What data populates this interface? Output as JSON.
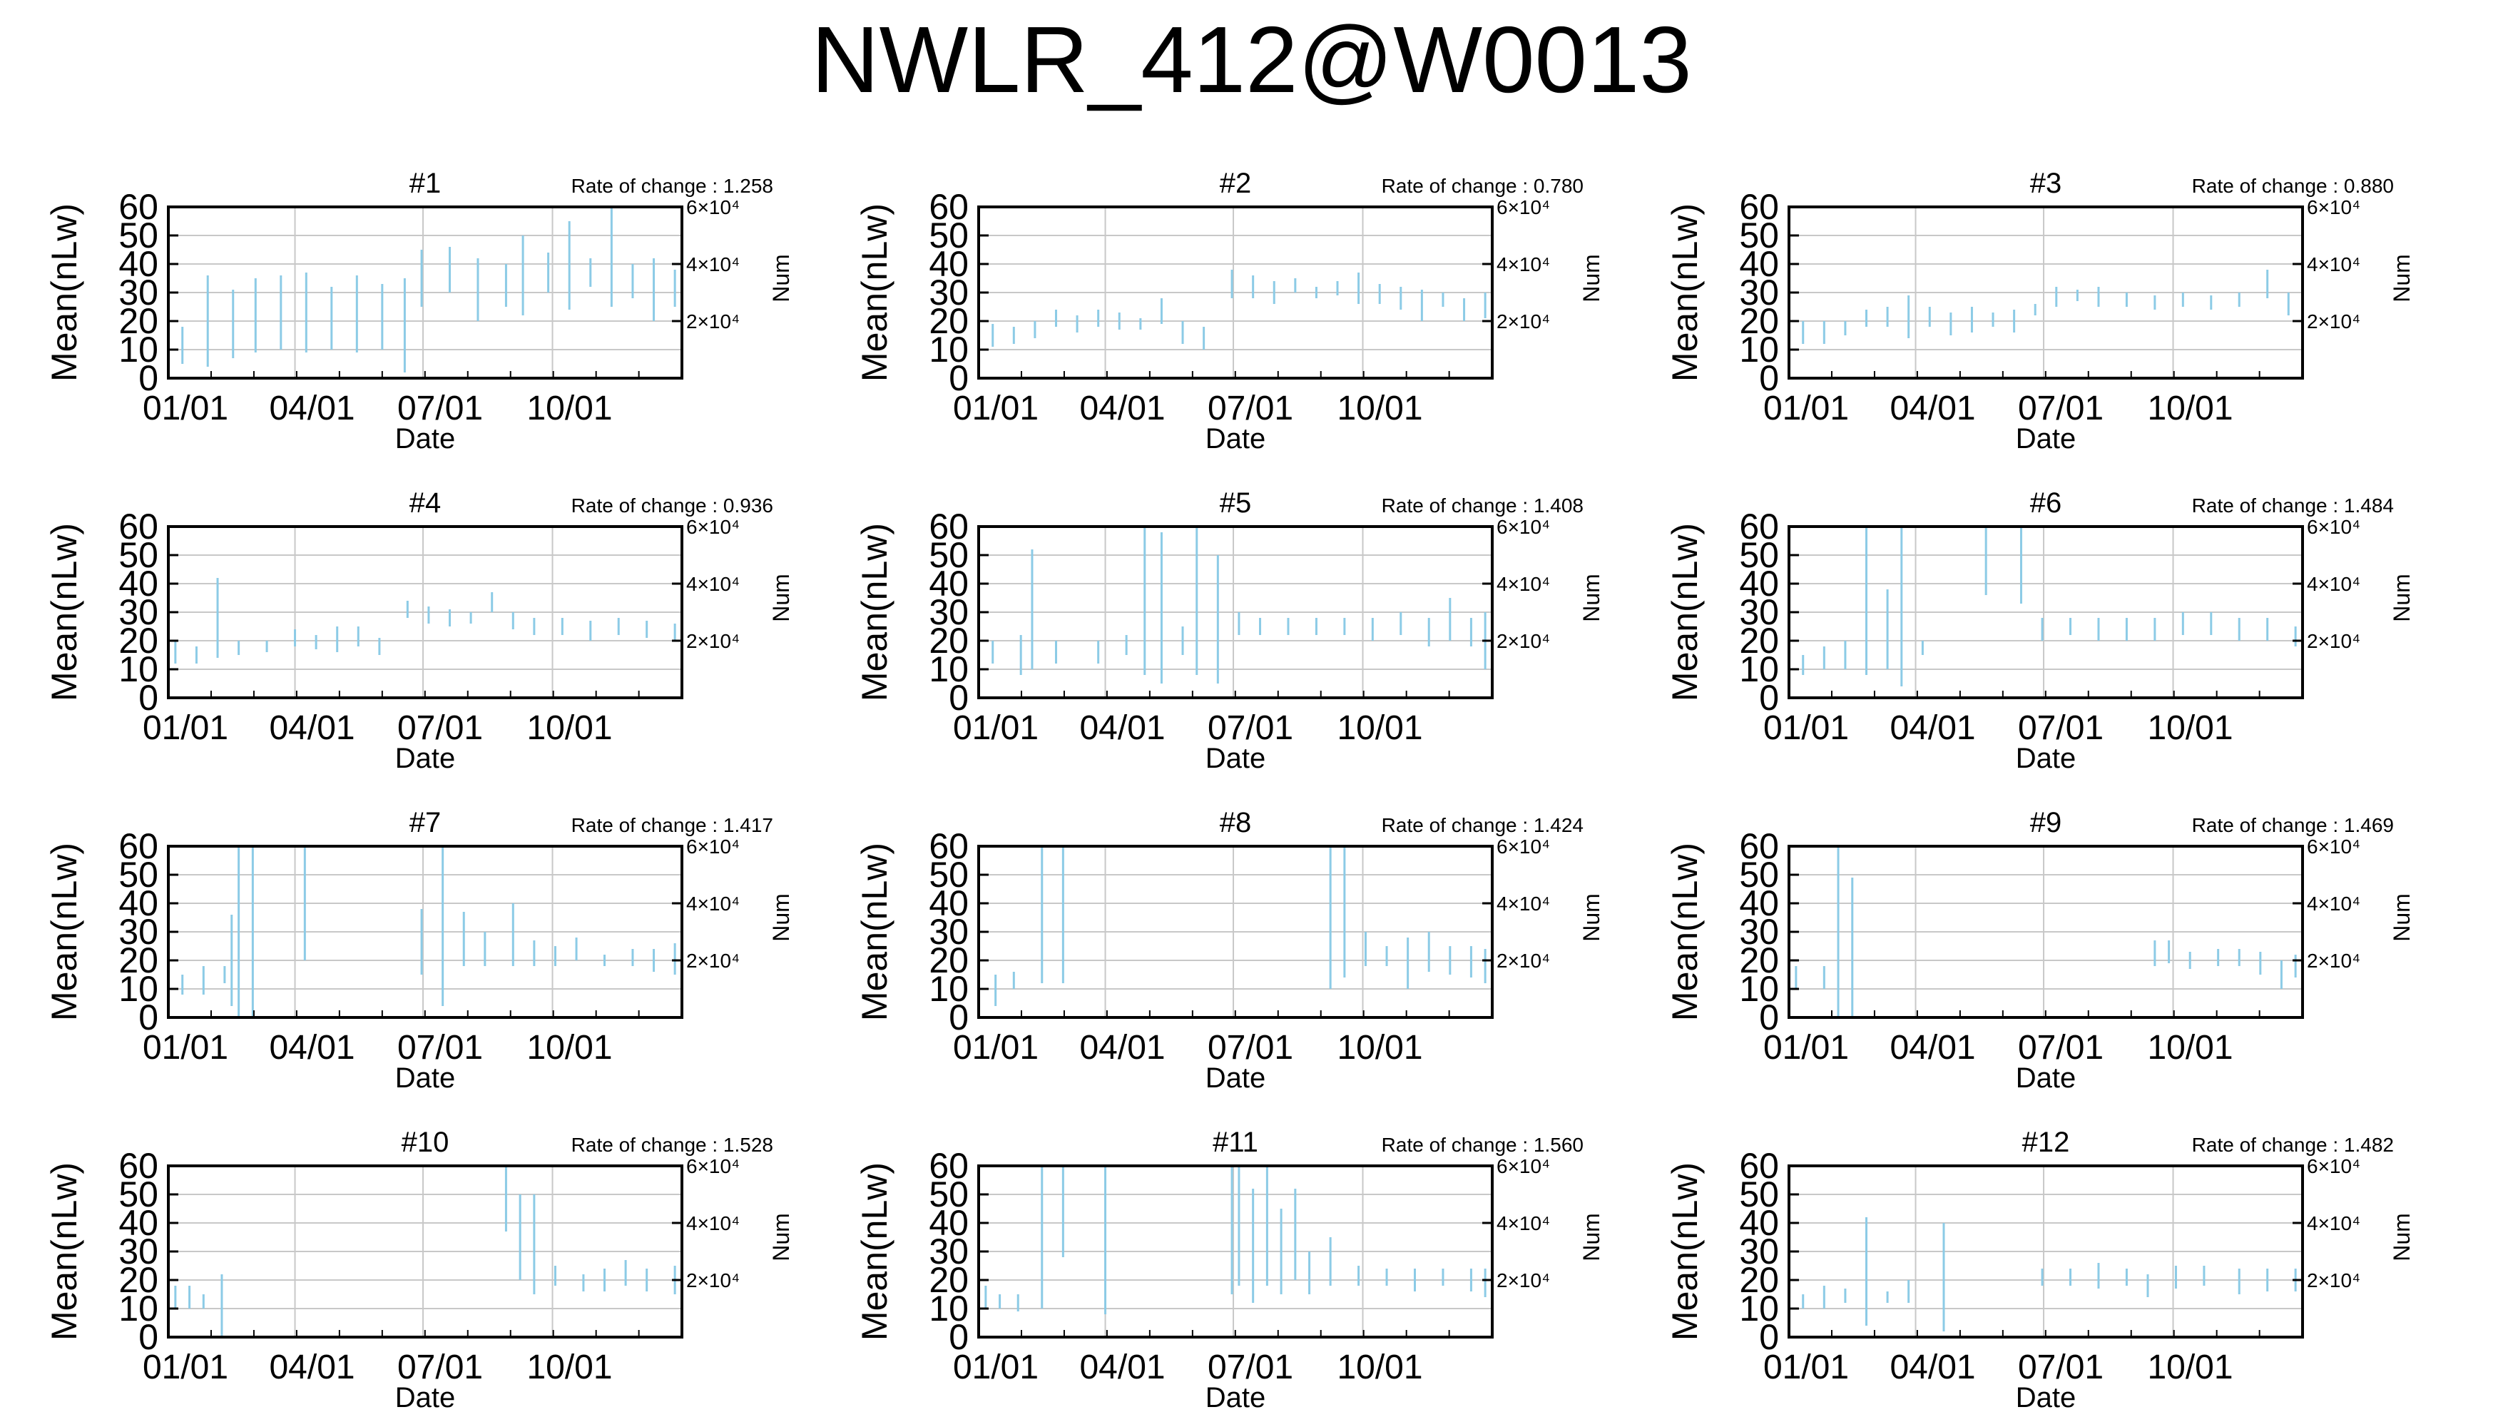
{
  "title": "NWLR_412@W0013",
  "chart_data": {
    "type": "range-bar",
    "ylabel": "Mean(nLw)",
    "xlabel": "Date",
    "y2label": "Num",
    "ylim": [
      0,
      60
    ],
    "yticks": [
      "0",
      "10",
      "20",
      "30",
      "40",
      "50",
      "60"
    ],
    "y2ticks": [
      "2×10⁴",
      "4×10⁴",
      "6×10⁴"
    ],
    "xlim": [
      0,
      365
    ],
    "xticks": [
      {
        "day": 0,
        "label": "01/01"
      },
      {
        "day": 90,
        "label": "04/01"
      },
      {
        "day": 181,
        "label": "07/01"
      },
      {
        "day": 273,
        "label": "10/01"
      }
    ],
    "grid": true,
    "bar_color": "#8ccbe6",
    "panels": [
      {
        "title": "#1",
        "rate_label": "Rate of change : 1.258",
        "bars": [
          [
            10,
            5,
            18
          ],
          [
            28,
            4,
            36
          ],
          [
            46,
            7,
            31
          ],
          [
            62,
            9,
            35
          ],
          [
            80,
            10,
            36
          ],
          [
            98,
            9,
            37
          ],
          [
            116,
            10,
            32
          ],
          [
            134,
            9,
            36
          ],
          [
            152,
            10,
            33
          ],
          [
            168,
            2,
            35
          ],
          [
            180,
            25,
            45
          ],
          [
            200,
            30,
            46
          ],
          [
            220,
            20,
            42
          ],
          [
            240,
            25,
            40
          ],
          [
            252,
            22,
            50
          ],
          [
            270,
            30,
            44
          ],
          [
            285,
            24,
            55
          ],
          [
            300,
            32,
            42
          ],
          [
            315,
            25,
            60
          ],
          [
            330,
            28,
            40
          ],
          [
            345,
            20,
            42
          ],
          [
            360,
            25,
            38
          ]
        ]
      },
      {
        "title": "#2",
        "rate_label": "Rate of change : 0.780",
        "bars": [
          [
            10,
            11,
            19
          ],
          [
            25,
            12,
            18
          ],
          [
            40,
            14,
            20
          ],
          [
            55,
            18,
            24
          ],
          [
            70,
            16,
            22
          ],
          [
            85,
            18,
            24
          ],
          [
            100,
            17,
            23
          ],
          [
            115,
            17,
            21
          ],
          [
            130,
            19,
            28
          ],
          [
            145,
            12,
            20
          ],
          [
            160,
            10,
            18
          ],
          [
            180,
            28,
            38
          ],
          [
            195,
            28,
            36
          ],
          [
            210,
            26,
            34
          ],
          [
            225,
            30,
            35
          ],
          [
            240,
            28,
            32
          ],
          [
            255,
            29,
            34
          ],
          [
            270,
            26,
            37
          ],
          [
            285,
            26,
            33
          ],
          [
            300,
            24,
            32
          ],
          [
            315,
            20,
            31
          ],
          [
            330,
            25,
            30
          ],
          [
            345,
            20,
            28
          ],
          [
            360,
            21,
            30
          ]
        ]
      },
      {
        "title": "#3",
        "rate_label": "Rate of change : 0.880",
        "bars": [
          [
            10,
            12,
            20
          ],
          [
            25,
            12,
            20
          ],
          [
            40,
            15,
            20
          ],
          [
            55,
            18,
            24
          ],
          [
            70,
            18,
            25
          ],
          [
            85,
            14,
            29
          ],
          [
            100,
            18,
            25
          ],
          [
            115,
            15,
            23
          ],
          [
            130,
            16,
            25
          ],
          [
            145,
            18,
            23
          ],
          [
            160,
            16,
            24
          ],
          [
            175,
            22,
            26
          ],
          [
            190,
            25,
            32
          ],
          [
            205,
            27,
            31
          ],
          [
            220,
            25,
            32
          ],
          [
            240,
            25,
            30
          ],
          [
            260,
            24,
            29
          ],
          [
            280,
            25,
            30
          ],
          [
            300,
            24,
            29
          ],
          [
            320,
            25,
            30
          ],
          [
            340,
            28,
            38
          ],
          [
            355,
            22,
            30
          ]
        ]
      },
      {
        "title": "#4",
        "rate_label": "Rate of change : 0.936",
        "bars": [
          [
            5,
            12,
            20
          ],
          [
            20,
            12,
            18
          ],
          [
            35,
            14,
            42
          ],
          [
            50,
            15,
            20
          ],
          [
            70,
            16,
            20
          ],
          [
            90,
            18,
            24
          ],
          [
            105,
            17,
            22
          ],
          [
            120,
            16,
            25
          ],
          [
            135,
            18,
            25
          ],
          [
            150,
            15,
            21
          ],
          [
            170,
            28,
            34
          ],
          [
            185,
            26,
            32
          ],
          [
            200,
            25,
            31
          ],
          [
            215,
            26,
            30
          ],
          [
            230,
            30,
            37
          ],
          [
            245,
            24,
            30
          ],
          [
            260,
            22,
            28
          ],
          [
            280,
            22,
            28
          ],
          [
            300,
            20,
            27
          ],
          [
            320,
            22,
            28
          ],
          [
            340,
            21,
            27
          ],
          [
            360,
            20,
            26
          ]
        ]
      },
      {
        "title": "#5",
        "rate_label": "Rate of change : 1.408",
        "bars": [
          [
            10,
            12,
            20
          ],
          [
            30,
            8,
            22
          ],
          [
            38,
            10,
            52
          ],
          [
            55,
            12,
            20
          ],
          [
            85,
            12,
            20
          ],
          [
            105,
            15,
            22
          ],
          [
            118,
            8,
            60
          ],
          [
            130,
            5,
            58
          ],
          [
            145,
            15,
            25
          ],
          [
            155,
            8,
            60
          ],
          [
            170,
            5,
            50
          ],
          [
            185,
            22,
            30
          ],
          [
            200,
            22,
            28
          ],
          [
            220,
            22,
            28
          ],
          [
            240,
            22,
            28
          ],
          [
            260,
            22,
            28
          ],
          [
            280,
            20,
            28
          ],
          [
            300,
            22,
            30
          ],
          [
            320,
            18,
            28
          ],
          [
            335,
            20,
            35
          ],
          [
            350,
            18,
            28
          ],
          [
            360,
            10,
            30
          ]
        ]
      },
      {
        "title": "#6",
        "rate_label": "Rate of change : 1.484",
        "bars": [
          [
            10,
            8,
            15
          ],
          [
            25,
            10,
            18
          ],
          [
            40,
            10,
            20
          ],
          [
            55,
            8,
            60
          ],
          [
            70,
            10,
            38
          ],
          [
            80,
            4,
            60
          ],
          [
            95,
            15,
            20
          ],
          [
            140,
            36,
            60
          ],
          [
            165,
            33,
            60
          ],
          [
            180,
            20,
            28
          ],
          [
            200,
            22,
            28
          ],
          [
            220,
            20,
            28
          ],
          [
            240,
            20,
            28
          ],
          [
            260,
            20,
            28
          ],
          [
            280,
            22,
            30
          ],
          [
            300,
            22,
            30
          ],
          [
            320,
            20,
            28
          ],
          [
            340,
            20,
            28
          ],
          [
            360,
            18,
            25
          ]
        ]
      },
      {
        "title": "#7",
        "rate_label": "Rate of change : 1.417",
        "bars": [
          [
            10,
            8,
            15
          ],
          [
            25,
            8,
            18
          ],
          [
            40,
            12,
            18
          ],
          [
            45,
            4,
            36
          ],
          [
            50,
            0,
            60
          ],
          [
            60,
            0,
            60
          ],
          [
            97,
            20,
            60
          ],
          [
            180,
            15,
            38
          ],
          [
            195,
            4,
            60
          ],
          [
            210,
            18,
            37
          ],
          [
            225,
            18,
            30
          ],
          [
            245,
            18,
            40
          ],
          [
            260,
            18,
            27
          ],
          [
            275,
            18,
            25
          ],
          [
            290,
            20,
            28
          ],
          [
            310,
            18,
            22
          ],
          [
            330,
            18,
            24
          ],
          [
            345,
            16,
            24
          ],
          [
            360,
            15,
            26
          ]
        ]
      },
      {
        "title": "#8",
        "rate_label": "Rate of change : 1.424",
        "bars": [
          [
            12,
            4,
            15
          ],
          [
            25,
            10,
            16
          ],
          [
            45,
            12,
            60
          ],
          [
            60,
            12,
            60
          ],
          [
            250,
            10,
            60
          ],
          [
            260,
            14,
            60
          ],
          [
            275,
            18,
            30
          ],
          [
            290,
            18,
            25
          ],
          [
            305,
            10,
            28
          ],
          [
            320,
            16,
            30
          ],
          [
            335,
            15,
            25
          ],
          [
            350,
            14,
            25
          ],
          [
            360,
            12,
            24
          ]
        ]
      },
      {
        "title": "#9",
        "rate_label": "Rate of change : 1.469",
        "bars": [
          [
            5,
            10,
            18
          ],
          [
            25,
            10,
            18
          ],
          [
            35,
            0,
            60
          ],
          [
            45,
            0,
            49
          ],
          [
            260,
            18,
            27
          ],
          [
            270,
            19,
            27
          ],
          [
            285,
            17,
            23
          ],
          [
            305,
            18,
            24
          ],
          [
            320,
            18,
            24
          ],
          [
            335,
            15,
            23
          ],
          [
            350,
            10,
            20
          ],
          [
            360,
            14,
            22
          ]
        ]
      },
      {
        "title": "#10",
        "rate_label": "Rate of change : 1.528",
        "bars": [
          [
            5,
            10,
            18
          ],
          [
            15,
            10,
            18
          ],
          [
            25,
            10,
            15
          ],
          [
            38,
            0,
            22
          ],
          [
            240,
            37,
            60
          ],
          [
            250,
            20,
            50
          ],
          [
            260,
            15,
            50
          ],
          [
            275,
            18,
            25
          ],
          [
            295,
            16,
            22
          ],
          [
            310,
            16,
            24
          ],
          [
            325,
            18,
            27
          ],
          [
            340,
            16,
            24
          ],
          [
            360,
            15,
            25
          ]
        ]
      },
      {
        "title": "#11",
        "rate_label": "Rate of change : 1.560",
        "bars": [
          [
            5,
            10,
            18
          ],
          [
            15,
            10,
            15
          ],
          [
            28,
            9,
            15
          ],
          [
            45,
            10,
            60
          ],
          [
            60,
            28,
            60
          ],
          [
            90,
            8,
            60
          ],
          [
            180,
            15,
            60
          ],
          [
            185,
            18,
            60
          ],
          [
            195,
            12,
            52
          ],
          [
            205,
            18,
            60
          ],
          [
            215,
            15,
            45
          ],
          [
            225,
            20,
            52
          ],
          [
            235,
            15,
            30
          ],
          [
            250,
            18,
            35
          ],
          [
            270,
            18,
            25
          ],
          [
            290,
            18,
            24
          ],
          [
            310,
            16,
            24
          ],
          [
            330,
            18,
            24
          ],
          [
            350,
            16,
            24
          ],
          [
            360,
            14,
            24
          ]
        ]
      },
      {
        "title": "#12",
        "rate_label": "Rate of change : 1.482",
        "bars": [
          [
            10,
            10,
            15
          ],
          [
            25,
            10,
            18
          ],
          [
            40,
            12,
            17
          ],
          [
            55,
            4,
            42
          ],
          [
            70,
            12,
            16
          ],
          [
            85,
            12,
            20
          ],
          [
            110,
            2,
            40
          ],
          [
            180,
            18,
            24
          ],
          [
            200,
            18,
            24
          ],
          [
            220,
            17,
            26
          ],
          [
            240,
            18,
            24
          ],
          [
            255,
            14,
            22
          ],
          [
            275,
            17,
            25
          ],
          [
            295,
            18,
            25
          ],
          [
            320,
            15,
            24
          ],
          [
            340,
            16,
            24
          ],
          [
            360,
            16,
            24
          ]
        ]
      }
    ]
  }
}
